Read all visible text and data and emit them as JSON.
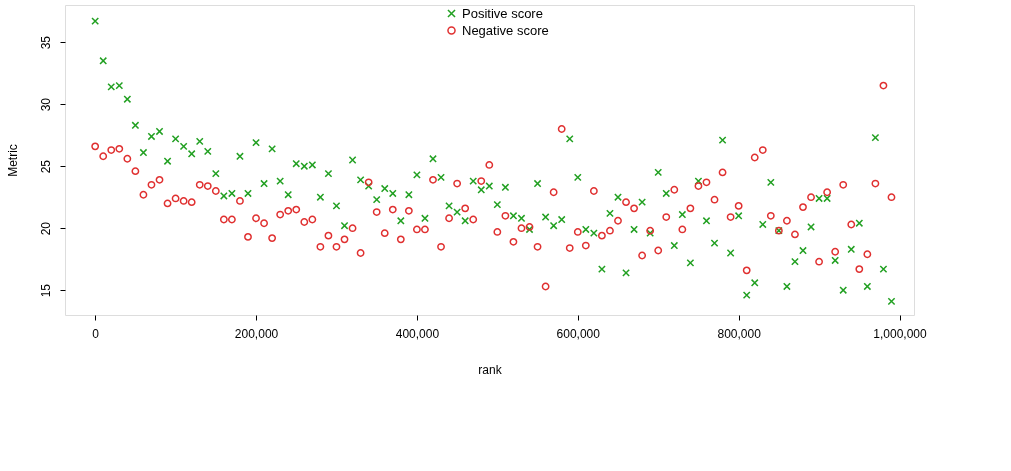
{
  "chart_data": {
    "type": "scatter",
    "xlabel": "rank",
    "ylabel": "Metric",
    "x": [
      0,
      10000,
      20000,
      30000,
      40000,
      50000,
      60000,
      70000,
      80000,
      90000,
      100000,
      110000,
      120000,
      130000,
      140000,
      150000,
      160000,
      170000,
      180000,
      190000,
      200000,
      210000,
      220000,
      230000,
      240000,
      250000,
      260000,
      270000,
      280000,
      290000,
      300000,
      310000,
      320000,
      330000,
      340000,
      350000,
      360000,
      370000,
      380000,
      390000,
      400000,
      410000,
      420000,
      430000,
      440000,
      450000,
      460000,
      470000,
      480000,
      490000,
      500000,
      510000,
      520000,
      530000,
      540000,
      550000,
      560000,
      570000,
      580000,
      590000,
      600000,
      610000,
      620000,
      630000,
      640000,
      650000,
      660000,
      670000,
      680000,
      690000,
      700000,
      710000,
      720000,
      730000,
      740000,
      750000,
      760000,
      770000,
      780000,
      790000,
      800000,
      810000,
      820000,
      830000,
      840000,
      850000,
      860000,
      870000,
      880000,
      890000,
      900000,
      910000,
      920000,
      930000,
      940000,
      950000,
      960000,
      970000,
      980000,
      990000
    ],
    "series": [
      {
        "name": "Positive score",
        "color": "#22a022",
        "marker": "cross",
        "values": [
          36.7,
          33.5,
          31.4,
          31.5,
          30.4,
          28.3,
          26.1,
          27.4,
          27.8,
          25.4,
          27.2,
          26.6,
          26.0,
          27.0,
          26.2,
          24.4,
          22.6,
          22.8,
          25.8,
          22.8,
          26.9,
          23.6,
          26.4,
          23.8,
          22.7,
          25.2,
          25.0,
          25.1,
          22.5,
          24.4,
          21.8,
          20.2,
          25.5,
          23.9,
          23.4,
          22.3,
          23.2,
          22.8,
          20.6,
          22.7,
          24.3,
          20.8,
          25.6,
          24.1,
          21.8,
          21.3,
          20.6,
          23.8,
          23.1,
          23.4,
          21.9,
          23.3,
          21.0,
          20.8,
          19.9,
          23.6,
          20.9,
          20.2,
          20.7,
          27.2,
          24.1,
          19.9,
          19.6,
          16.7,
          21.2,
          22.5,
          16.4,
          19.9,
          22.1,
          19.6,
          24.5,
          22.8,
          18.6,
          21.1,
          17.2,
          23.8,
          20.6,
          18.8,
          27.1,
          18.0,
          21.0,
          14.6,
          15.6,
          20.3,
          23.7,
          19.8,
          15.3,
          17.3,
          18.2,
          20.1,
          22.4,
          22.4,
          17.4,
          15.0,
          18.3,
          20.4,
          15.3,
          27.3,
          16.7,
          14.1
        ]
      },
      {
        "name": "Negative score",
        "color": "#e03030",
        "marker": "circle",
        "values": [
          26.6,
          25.8,
          26.3,
          26.4,
          25.6,
          24.6,
          22.7,
          23.5,
          23.9,
          22.0,
          22.4,
          22.2,
          22.1,
          23.5,
          23.4,
          23.0,
          20.7,
          20.7,
          22.2,
          19.3,
          20.8,
          20.4,
          19.2,
          21.1,
          21.4,
          21.5,
          20.5,
          20.7,
          18.5,
          19.4,
          18.5,
          19.1,
          20.0,
          18.0,
          23.7,
          21.3,
          19.6,
          21.5,
          19.1,
          21.4,
          19.9,
          19.9,
          23.9,
          18.5,
          20.8,
          23.6,
          21.6,
          20.7,
          23.8,
          25.1,
          19.7,
          21.0,
          18.9,
          20.0,
          20.1,
          18.5,
          15.3,
          22.9,
          28.0,
          18.4,
          19.7,
          18.6,
          23.0,
          19.4,
          19.8,
          20.6,
          22.1,
          21.6,
          17.8,
          19.8,
          18.2,
          20.9,
          23.1,
          19.9,
          21.6,
          23.4,
          23.7,
          22.3,
          24.5,
          20.9,
          21.8,
          16.6,
          25.7,
          26.3,
          21.0,
          19.8,
          20.6,
          19.5,
          21.7,
          22.5,
          17.3,
          22.9,
          18.1,
          23.5,
          20.3,
          16.7,
          17.9,
          23.6,
          31.5,
          22.5
        ]
      }
    ],
    "xlim": [
      -37500,
      1018000
    ],
    "ylim": [
      13,
      38
    ],
    "xticks": [
      0,
      {
        "value": 200000,
        "label": "200,000"
      },
      {
        "value": 400000,
        "label": "400,000"
      },
      {
        "value": 600000,
        "label": "600,000"
      },
      {
        "value": 800000,
        "label": "800,000"
      },
      {
        "value": 1000000,
        "label": "1,000,000"
      }
    ],
    "yticks": [
      15,
      20,
      25,
      30,
      35
    ],
    "legend": "top",
    "grid": false
  }
}
